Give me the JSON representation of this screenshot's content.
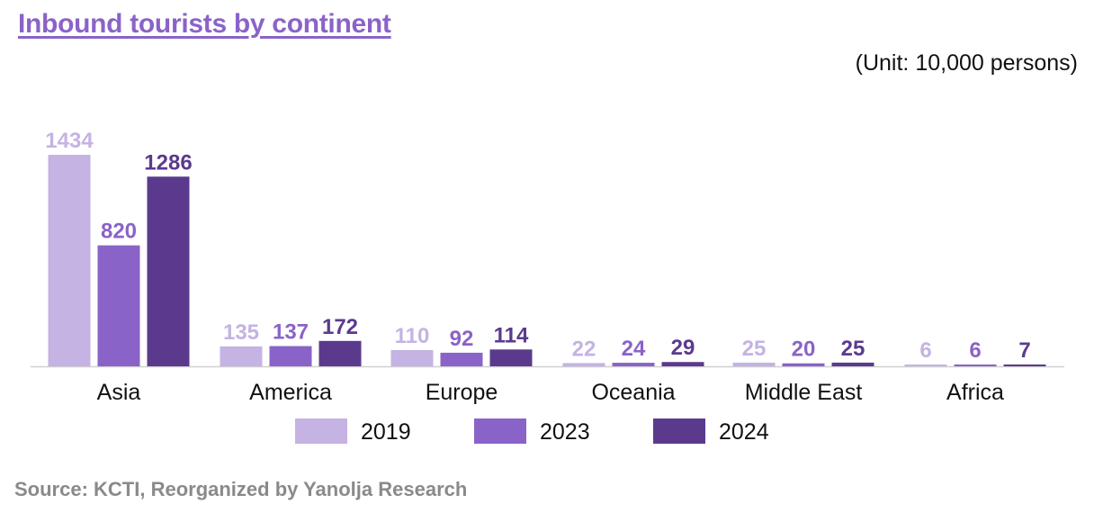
{
  "title": "Inbound tourists by continent",
  "unit": "(Unit: 10,000 persons)",
  "source": "Source: KCTI, Reorganized by Yanolja Research",
  "chart_data": {
    "type": "bar",
    "categories": [
      "Asia",
      "America",
      "Europe",
      "Oceania",
      "Middle East",
      "Africa"
    ],
    "series": [
      {
        "name": "2019",
        "color": "#c4b3e3",
        "values": [
          1434,
          135,
          110,
          22,
          25,
          6
        ]
      },
      {
        "name": "2023",
        "color": "#8a63c8",
        "values": [
          820,
          137,
          92,
          24,
          20,
          6
        ]
      },
      {
        "name": "2024",
        "color": "#5b3a8e",
        "values": [
          1286,
          172,
          114,
          29,
          25,
          7
        ]
      }
    ],
    "ylim": [
      0,
      1434
    ],
    "grid": false,
    "legend": "bottom"
  }
}
